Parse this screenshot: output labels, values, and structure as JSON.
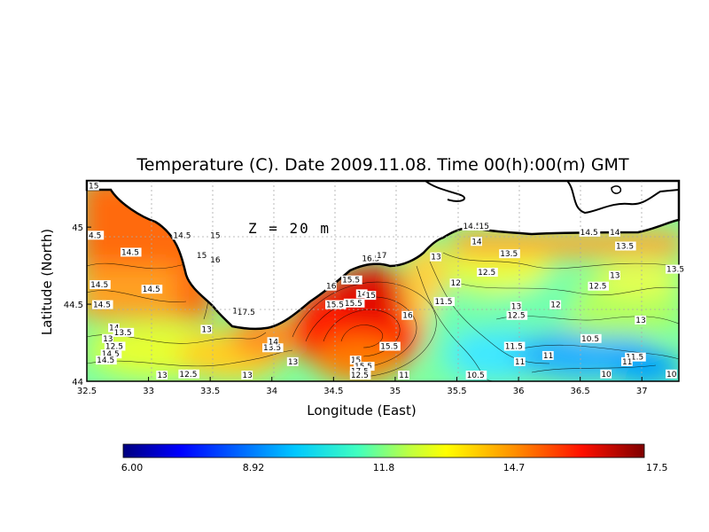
{
  "title": "Temperature (C). Date 2009.11.08. Time 00(h):00(m) GMT",
  "depth_label": "Z = 20 m",
  "xlabel": "Longitude (East)",
  "ylabel": "Latitude (North)",
  "x_ticks": [
    "32.5",
    "33",
    "33.5",
    "34",
    "34.5",
    "35",
    "35.5",
    "36",
    "36.5",
    "37"
  ],
  "y_ticks": [
    "44",
    "44.5",
    "45"
  ],
  "colorbar": {
    "min": 6.0,
    "max": 17.5,
    "labels": [
      "6.00",
      "8.92",
      "11.8",
      "14.7",
      "17.5"
    ],
    "colors": [
      "#00007f",
      "#0000ff",
      "#007fff",
      "#00ffff",
      "#7fff7f",
      "#ffff00",
      "#ff7f00",
      "#ff0000",
      "#7f0000"
    ]
  },
  "chart_data": {
    "type": "heatmap",
    "title": "Temperature (C). Date 2009.11.08. Time 00(h):00(m) GMT",
    "xlabel": "Longitude (East)",
    "ylabel": "Latitude (North)",
    "xlim": [
      32.5,
      37.3
    ],
    "ylim": [
      44.0,
      45.3
    ],
    "grid": true,
    "value_range": [
      6.0,
      17.5
    ],
    "contour_labels": [
      {
        "lon": 32.5,
        "lat": 45.25,
        "value": "15"
      },
      {
        "lon": 32.5,
        "lat": 44.93,
        "value": "4.5"
      },
      {
        "lon": 32.78,
        "lat": 44.82,
        "value": "14.5"
      },
      {
        "lon": 33.2,
        "lat": 44.93,
        "value": "14.5"
      },
      {
        "lon": 33.5,
        "lat": 44.93,
        "value": "15"
      },
      {
        "lon": 33.39,
        "lat": 44.8,
        "value": "15"
      },
      {
        "lon": 33.5,
        "lat": 44.77,
        "value": "16"
      },
      {
        "lon": 32.53,
        "lat": 44.61,
        "value": "14.5"
      },
      {
        "lon": 32.95,
        "lat": 44.58,
        "value": "14.5"
      },
      {
        "lon": 32.55,
        "lat": 44.48,
        "value": "14.5"
      },
      {
        "lon": 32.68,
        "lat": 44.33,
        "value": "14"
      },
      {
        "lon": 32.72,
        "lat": 44.3,
        "value": "13.5"
      },
      {
        "lon": 32.63,
        "lat": 44.26,
        "value": "13"
      },
      {
        "lon": 32.62,
        "lat": 44.16,
        "value": "14.5"
      },
      {
        "lon": 32.65,
        "lat": 44.21,
        "value": "12.5"
      },
      {
        "lon": 32.58,
        "lat": 44.12,
        "value": "14.5"
      },
      {
        "lon": 33.07,
        "lat": 44.02,
        "value": "13"
      },
      {
        "lon": 33.25,
        "lat": 44.03,
        "value": "12.5"
      },
      {
        "lon": 33.43,
        "lat": 44.32,
        "value": "13"
      },
      {
        "lon": 33.68,
        "lat": 44.44,
        "value": "15"
      },
      {
        "lon": 33.72,
        "lat": 44.43,
        "value": "17.5"
      },
      {
        "lon": 33.76,
        "lat": 44.02,
        "value": "13"
      },
      {
        "lon": 33.93,
        "lat": 44.2,
        "value": "13.5"
      },
      {
        "lon": 33.97,
        "lat": 44.24,
        "value": "14"
      },
      {
        "lon": 34.13,
        "lat": 44.11,
        "value": "13"
      },
      {
        "lon": 34.44,
        "lat": 44.6,
        "value": "16"
      },
      {
        "lon": 34.57,
        "lat": 44.64,
        "value": "15.5"
      },
      {
        "lon": 34.44,
        "lat": 44.48,
        "value": "15.5"
      },
      {
        "lon": 34.59,
        "lat": 44.49,
        "value": "15.5"
      },
      {
        "lon": 34.69,
        "lat": 44.55,
        "value": "14"
      },
      {
        "lon": 34.76,
        "lat": 44.54,
        "value": "15"
      },
      {
        "lon": 34.73,
        "lat": 44.78,
        "value": "16.5"
      },
      {
        "lon": 34.85,
        "lat": 44.8,
        "value": "17"
      },
      {
        "lon": 35.06,
        "lat": 44.41,
        "value": "16"
      },
      {
        "lon": 34.88,
        "lat": 44.21,
        "value": "15.5"
      },
      {
        "lon": 34.64,
        "lat": 44.12,
        "value": "15"
      },
      {
        "lon": 34.67,
        "lat": 44.08,
        "value": "15.5"
      },
      {
        "lon": 34.64,
        "lat": 44.05,
        "value": "17.5"
      },
      {
        "lon": 34.64,
        "lat": 44.02,
        "value": "12.5"
      },
      {
        "lon": 35.03,
        "lat": 44.02,
        "value": "11"
      },
      {
        "lon": 35.29,
        "lat": 44.79,
        "value": "13"
      },
      {
        "lon": 35.45,
        "lat": 44.62,
        "value": "12"
      },
      {
        "lon": 35.32,
        "lat": 44.5,
        "value": "11.5"
      },
      {
        "lon": 35.55,
        "lat": 44.99,
        "value": "14.5"
      },
      {
        "lon": 35.68,
        "lat": 44.99,
        "value": "15"
      },
      {
        "lon": 35.62,
        "lat": 44.89,
        "value": "14"
      },
      {
        "lon": 35.85,
        "lat": 44.81,
        "value": "13.5"
      },
      {
        "lon": 35.67,
        "lat": 44.69,
        "value": "12.5"
      },
      {
        "lon": 35.94,
        "lat": 44.47,
        "value": "13"
      },
      {
        "lon": 35.91,
        "lat": 44.41,
        "value": "12.5"
      },
      {
        "lon": 35.89,
        "lat": 44.21,
        "value": "11.5"
      },
      {
        "lon": 35.97,
        "lat": 44.11,
        "value": "11"
      },
      {
        "lon": 35.58,
        "lat": 44.0,
        "value": "10.5"
      },
      {
        "lon": 36.2,
        "lat": 44.15,
        "value": "11"
      },
      {
        "lon": 36.26,
        "lat": 44.48,
        "value": "12"
      },
      {
        "lon": 36.5,
        "lat": 44.95,
        "value": "14.5"
      },
      {
        "lon": 36.74,
        "lat": 44.95,
        "value": "14"
      },
      {
        "lon": 36.79,
        "lat": 44.86,
        "value": "13.5"
      },
      {
        "lon": 36.74,
        "lat": 44.67,
        "value": "13"
      },
      {
        "lon": 36.57,
        "lat": 44.6,
        "value": "12.5"
      },
      {
        "lon": 37.2,
        "lat": 44.71,
        "value": "13.5"
      },
      {
        "lon": 36.95,
        "lat": 44.38,
        "value": "13"
      },
      {
        "lon": 36.51,
        "lat": 44.26,
        "value": "10.5"
      },
      {
        "lon": 36.87,
        "lat": 44.14,
        "value": "11.5"
      },
      {
        "lon": 36.84,
        "lat": 44.11,
        "value": "11"
      },
      {
        "lon": 36.67,
        "lat": 44.03,
        "value": "10"
      },
      {
        "lon": 37.28,
        "lat": 44.03,
        "value": "10"
      }
    ]
  }
}
